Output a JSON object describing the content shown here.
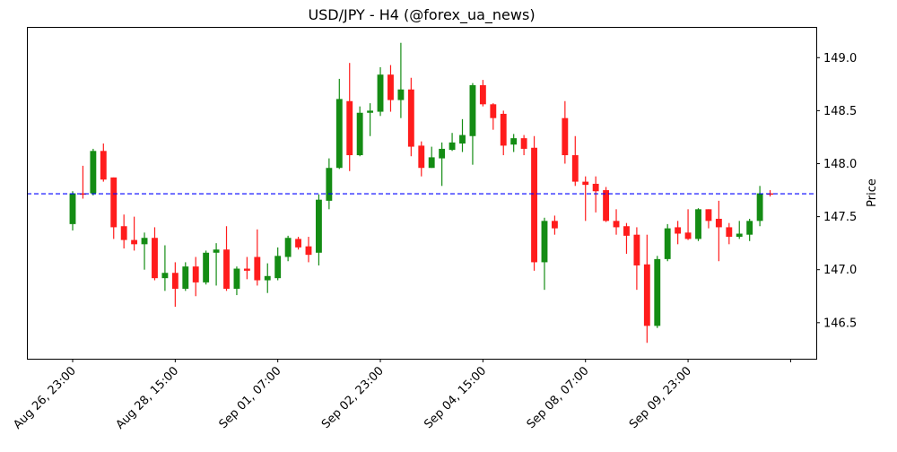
{
  "chart_data": {
    "type": "candlestick",
    "title": "USD/JPY - H4 (@forex_ua_news)",
    "xlabel": "",
    "ylabel": "Price",
    "ylim": [
      146.16,
      149.29
    ],
    "y_ticks": [
      146.5,
      147.0,
      147.5,
      148.0,
      148.5,
      149.0
    ],
    "y_tick_labels": [
      "146.5",
      "147.0",
      "147.5",
      "148.0",
      "148.5",
      "149.0"
    ],
    "x_ticks": [
      {
        "index": 0,
        "label": "Aug 26, 23:00"
      },
      {
        "index": 10,
        "label": "Aug 28, 15:00"
      },
      {
        "index": 20,
        "label": "Sep 01, 07:00"
      },
      {
        "index": 30,
        "label": "Sep 02, 23:00"
      },
      {
        "index": 40,
        "label": "Sep 04, 15:00"
      },
      {
        "index": 50,
        "label": "Sep 08, 07:00"
      },
      {
        "index": 60,
        "label": "Sep 09, 23:00"
      },
      {
        "index": 70,
        "label": ""
      }
    ],
    "reference_line": {
      "value": 147.716,
      "color": "#0000ff",
      "style": "dashed"
    },
    "colors": {
      "up": "#148c14",
      "down": "#ff1c1c"
    },
    "candle_fields": [
      "open",
      "high",
      "low",
      "close"
    ],
    "candles": [
      [
        147.43,
        147.74,
        147.37,
        147.72
      ],
      [
        147.72,
        147.98,
        147.67,
        147.71
      ],
      [
        147.72,
        148.14,
        147.7,
        148.12
      ],
      [
        148.12,
        148.19,
        147.83,
        147.85
      ],
      [
        147.87,
        147.87,
        147.29,
        147.4
      ],
      [
        147.41,
        147.52,
        147.2,
        147.28
      ],
      [
        147.28,
        147.5,
        147.18,
        147.24
      ],
      [
        147.24,
        147.35,
        147.0,
        147.3
      ],
      [
        147.3,
        147.4,
        146.9,
        146.92
      ],
      [
        146.92,
        147.23,
        146.8,
        146.97
      ],
      [
        146.97,
        147.07,
        146.65,
        146.82
      ],
      [
        146.82,
        147.07,
        146.8,
        147.03
      ],
      [
        147.03,
        147.12,
        146.75,
        146.88
      ],
      [
        146.88,
        147.18,
        146.86,
        147.16
      ],
      [
        147.16,
        147.25,
        146.85,
        147.19
      ],
      [
        147.19,
        147.41,
        146.8,
        146.82
      ],
      [
        146.82,
        147.03,
        146.76,
        147.01
      ],
      [
        147.01,
        147.12,
        146.91,
        146.99
      ],
      [
        147.12,
        147.38,
        146.85,
        146.9
      ],
      [
        146.9,
        147.06,
        146.78,
        146.94
      ],
      [
        146.92,
        147.21,
        146.9,
        147.13
      ],
      [
        147.12,
        147.32,
        147.08,
        147.3
      ],
      [
        147.29,
        147.31,
        147.19,
        147.21
      ],
      [
        147.22,
        147.31,
        147.07,
        147.14
      ],
      [
        147.16,
        147.71,
        147.04,
        147.66
      ],
      [
        147.65,
        148.05,
        147.57,
        147.96
      ],
      [
        147.96,
        148.8,
        147.95,
        148.61
      ],
      [
        148.59,
        148.95,
        147.93,
        148.08
      ],
      [
        148.08,
        148.54,
        148.07,
        148.48
      ],
      [
        148.48,
        148.57,
        148.26,
        148.5
      ],
      [
        148.49,
        148.91,
        148.45,
        148.84
      ],
      [
        148.84,
        148.93,
        148.49,
        148.6
      ],
      [
        148.6,
        149.14,
        148.43,
        148.7
      ],
      [
        148.7,
        148.81,
        148.07,
        148.16
      ],
      [
        148.17,
        148.21,
        147.88,
        147.96
      ],
      [
        147.96,
        148.16,
        147.96,
        148.06
      ],
      [
        148.05,
        148.2,
        147.79,
        148.14
      ],
      [
        148.13,
        148.29,
        148.12,
        148.2
      ],
      [
        148.19,
        148.42,
        148.11,
        148.27
      ],
      [
        148.26,
        148.76,
        147.99,
        148.74
      ],
      [
        148.74,
        148.79,
        148.54,
        148.56
      ],
      [
        148.56,
        148.57,
        148.32,
        148.43
      ],
      [
        148.47,
        148.5,
        148.08,
        148.17
      ],
      [
        148.18,
        148.28,
        148.11,
        148.24
      ],
      [
        148.24,
        148.27,
        148.08,
        148.14
      ],
      [
        148.15,
        148.26,
        146.99,
        147.07
      ],
      [
        147.07,
        147.49,
        146.81,
        147.46
      ],
      [
        147.46,
        147.51,
        147.33,
        147.39
      ],
      [
        148.43,
        148.59,
        148.0,
        148.08
      ],
      [
        148.08,
        148.26,
        147.79,
        147.83
      ],
      [
        147.83,
        147.88,
        147.46,
        147.8
      ],
      [
        147.81,
        147.88,
        147.54,
        147.74
      ],
      [
        147.75,
        147.78,
        147.45,
        147.46
      ],
      [
        147.46,
        147.57,
        147.33,
        147.4
      ],
      [
        147.41,
        147.44,
        147.15,
        147.32
      ],
      [
        147.33,
        147.4,
        146.81,
        147.04
      ],
      [
        147.05,
        147.33,
        146.31,
        146.47
      ],
      [
        146.47,
        147.13,
        146.45,
        147.1
      ],
      [
        147.1,
        147.43,
        147.08,
        147.39
      ],
      [
        147.4,
        147.46,
        147.24,
        147.34
      ],
      [
        147.35,
        147.57,
        147.28,
        147.29
      ],
      [
        147.29,
        147.58,
        147.27,
        147.57
      ],
      [
        147.57,
        147.57,
        147.39,
        147.46
      ],
      [
        147.48,
        147.65,
        147.08,
        147.4
      ],
      [
        147.4,
        147.44,
        147.24,
        147.31
      ],
      [
        147.31,
        147.46,
        147.29,
        147.34
      ],
      [
        147.33,
        147.48,
        147.27,
        147.46
      ],
      [
        147.46,
        147.79,
        147.41,
        147.72
      ],
      [
        147.72,
        147.75,
        147.69,
        147.71
      ]
    ],
    "xlim_index": [
      -4.46,
      72.5
    ],
    "grid": false,
    "legend": "none"
  }
}
